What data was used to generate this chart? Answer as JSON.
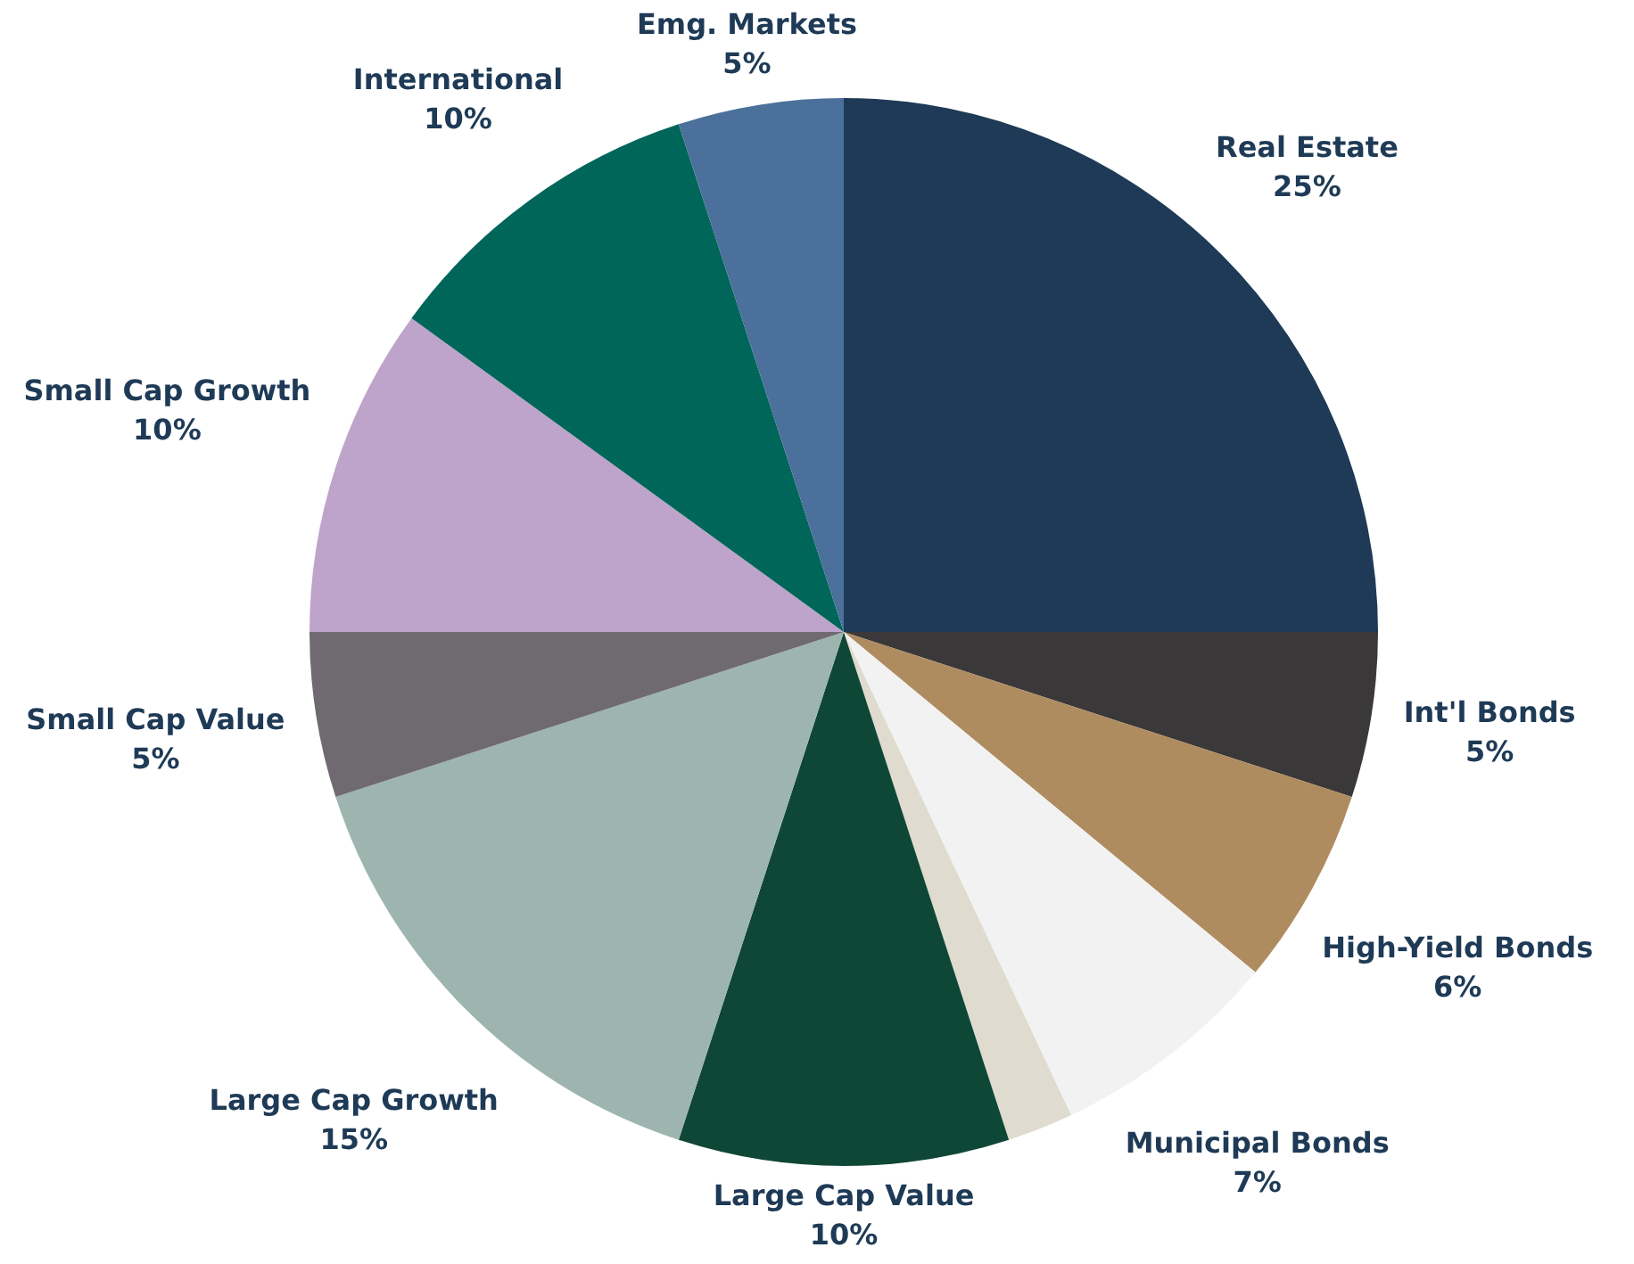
{
  "chart_data": {
    "type": "pie",
    "categories": [
      "Real Estate",
      "Int'l Bonds",
      "High-Yield Bonds",
      "Municipal Bonds",
      null,
      "Large Cap Value",
      "Large Cap Growth",
      "Small Cap Value",
      "Small Cap Growth",
      "International",
      "Emg. Markets"
    ],
    "values": [
      25,
      5,
      6,
      7,
      2,
      10,
      15,
      5,
      10,
      10,
      5
    ],
    "value_labels": [
      "25%",
      "5%",
      "6%",
      "7%",
      null,
      "10%",
      "15%",
      "5%",
      "10%",
      "10%",
      "5%"
    ],
    "colors": [
      "#1e3a56",
      "#3b3839",
      "#af8c60",
      "#f2f2f2",
      "#dfdccf",
      "#0f4737",
      "#9db5ae",
      "#6f6a70",
      "#bea4cb",
      "#00665a",
      "#4a709b"
    ],
    "legend": false
  }
}
